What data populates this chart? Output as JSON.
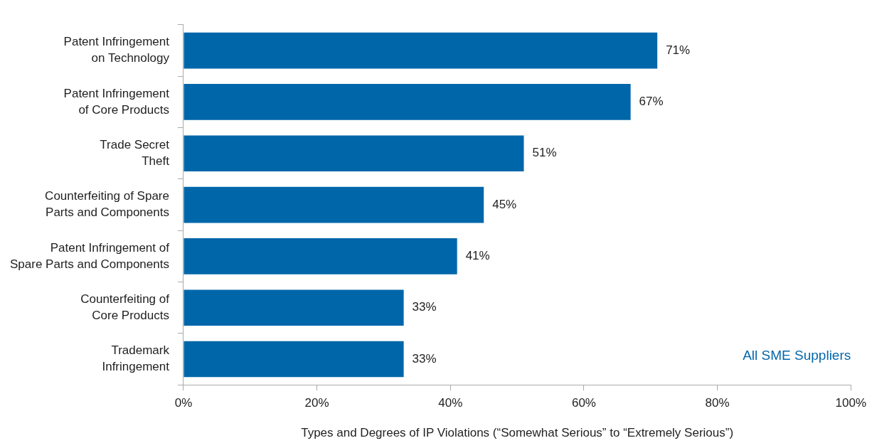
{
  "chart_data": {
    "type": "bar",
    "orientation": "horizontal",
    "xlabel": "Types and Degrees of IP Violations (“Somewhat Serious” to “Extremely Serious”)",
    "categories": [
      "Patent Infringement\non Technology",
      "Patent Infringement\nof Core Products",
      "Trade Secret\nTheft",
      "Counterfeiting of Spare\nParts and Components",
      "Patent Infringement of\nSpare Parts and Components",
      "Counterfeiting of\nCore Products",
      "Trademark\nInfringement"
    ],
    "series": [
      {
        "name": "All SME Suppliers",
        "color": "#0066aa",
        "values": [
          71,
          67,
          51,
          45,
          41,
          33,
          33
        ],
        "value_labels": [
          "71%",
          "67%",
          "51%",
          "45%",
          "41%",
          "33%",
          "33%"
        ]
      }
    ],
    "xlim": [
      0,
      100
    ],
    "xticks": [
      {
        "value": 0,
        "label": "0%"
      },
      {
        "value": 20,
        "label": "20%"
      },
      {
        "value": 40,
        "label": "40%"
      },
      {
        "value": 60,
        "label": "60%"
      },
      {
        "value": 80,
        "label": "80%"
      },
      {
        "value": 100,
        "label": "100%"
      }
    ],
    "grid": false,
    "legend": "bottom right"
  }
}
